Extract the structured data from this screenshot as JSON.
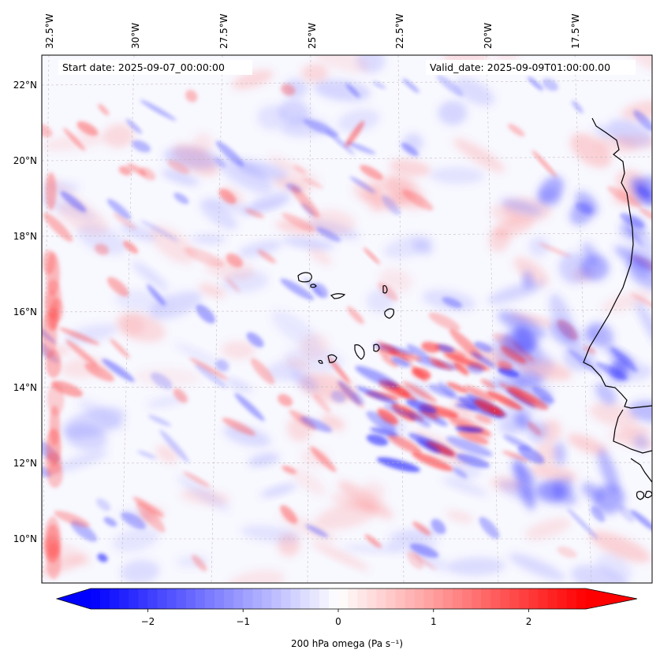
{
  "map": {
    "start_date": "Start date: 2025-09-07_00:00:00",
    "valid_date": "Valid_date: 2025-09-09T01:00:00.00",
    "lon_labels": [
      "32.5°W",
      "30°W",
      "27.5°W",
      "25°W",
      "22.5°W",
      "20°W",
      "17.5°W"
    ],
    "lat_labels": [
      "22°N",
      "20°N",
      "18°N",
      "16°N",
      "14°N",
      "12°N",
      "10°N"
    ],
    "gridlines": true
  },
  "colorbar": {
    "label": "200 hPa omega (Pa s⁻¹)",
    "tick_labels": [
      "−2",
      "−1",
      "0",
      "1",
      "2"
    ],
    "ticks": [
      -2,
      -1,
      0,
      1,
      2
    ],
    "range": [
      -2.6,
      2.6
    ],
    "colormap": "bwr",
    "colors": {
      "negative": "#0000ff",
      "zero": "#ffffff",
      "positive": "#ff0000"
    }
  }
}
